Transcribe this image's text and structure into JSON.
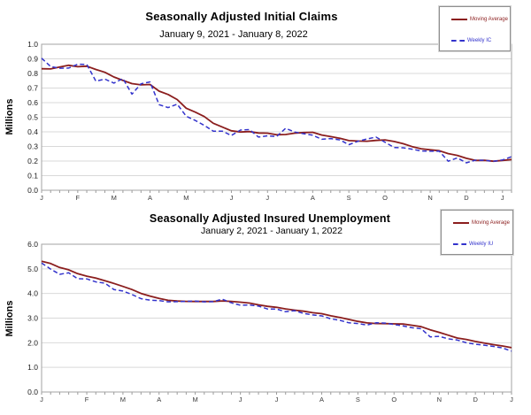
{
  "colors": {
    "grid": "#d9d9d9",
    "frame": "#a3a3a3",
    "tick": "#9a9a9a",
    "axis_text": "#3a3a3a",
    "ytick_text": "#1a1a1a",
    "title_text": "#000000"
  },
  "chart_data": [
    {
      "type": "line",
      "title": "Seasonally Adjusted Initial Claims",
      "subtitle": "January 9, 2021 - January 8, 2022",
      "ylabel": "Millions",
      "ylim": [
        0.0,
        1.0
      ],
      "ytick_labels": [
        "1.0",
        "0.9",
        "0.8",
        "0.7",
        "0.6",
        "0.5",
        "0.4",
        "0.3",
        "0.2",
        "0.1",
        "0.0"
      ],
      "grid": "horizontal",
      "legend_position": "top-right",
      "x_month_labels": [
        "J",
        "F",
        "M",
        "A",
        "M",
        "J",
        "J",
        "A",
        "S",
        "O",
        "N",
        "D",
        "J"
      ],
      "x_month_week_index": [
        0,
        4,
        8,
        12,
        16,
        21,
        25,
        30,
        34,
        38,
        43,
        47,
        51
      ],
      "series": [
        {
          "name": "Moving Average",
          "style": "solid",
          "color": "#8b1e1e",
          "values": [
            0.832,
            0.831,
            0.844,
            0.856,
            0.846,
            0.85,
            0.827,
            0.808,
            0.776,
            0.752,
            0.73,
            0.722,
            0.724,
            0.679,
            0.656,
            0.621,
            0.562,
            0.535,
            0.505,
            0.459,
            0.433,
            0.407,
            0.399,
            0.402,
            0.392,
            0.391,
            0.38,
            0.382,
            0.391,
            0.395,
            0.397,
            0.378,
            0.367,
            0.356,
            0.34,
            0.337,
            0.336,
            0.341,
            0.345,
            0.334,
            0.319,
            0.299,
            0.284,
            0.277,
            0.271,
            0.251,
            0.239,
            0.219,
            0.204,
            0.205,
            0.199,
            0.204,
            0.21
          ]
        },
        {
          "name": "Weekly IC",
          "style": "dashed",
          "color": "#3333cc",
          "values": [
            0.904,
            0.847,
            0.836,
            0.837,
            0.863,
            0.862,
            0.747,
            0.761,
            0.734,
            0.765,
            0.658,
            0.729,
            0.742,
            0.586,
            0.566,
            0.59,
            0.507,
            0.478,
            0.444,
            0.405,
            0.405,
            0.375,
            0.412,
            0.416,
            0.364,
            0.373,
            0.368,
            0.424,
            0.399,
            0.387,
            0.377,
            0.349,
            0.354,
            0.345,
            0.312,
            0.335,
            0.351,
            0.364,
            0.329,
            0.293,
            0.291,
            0.281,
            0.269,
            0.267,
            0.268,
            0.199,
            0.222,
            0.188,
            0.206,
            0.205,
            0.198,
            0.207,
            0.23
          ]
        }
      ]
    },
    {
      "type": "line",
      "title": "Seasonally Adjusted Insured Unemployment",
      "subtitle": "January 2, 2021 - January 1, 2022",
      "ylabel": "Millions",
      "ylim": [
        0.0,
        6.0
      ],
      "ytick_labels": [
        "6.0",
        "5.0",
        "4.0",
        "3.0",
        "2.0",
        "1.0",
        "0.0"
      ],
      "grid": "horizontal",
      "legend_position": "top-right",
      "x_month_labels": [
        "J",
        "F",
        "M",
        "A",
        "M",
        "J",
        "J",
        "A",
        "S",
        "O",
        "N",
        "D",
        "J"
      ],
      "x_month_week_index": [
        0,
        5,
        9,
        13,
        17,
        22,
        26,
        31,
        35,
        39,
        44,
        48,
        52
      ],
      "series": [
        {
          "name": "Moving Average",
          "style": "solid",
          "color": "#8b1e1e",
          "values": [
            5.308,
            5.218,
            5.055,
            4.963,
            4.803,
            4.703,
            4.625,
            4.52,
            4.41,
            4.288,
            4.16,
            4.003,
            3.895,
            3.798,
            3.723,
            3.693,
            3.68,
            3.675,
            3.675,
            3.675,
            3.698,
            3.68,
            3.645,
            3.61,
            3.54,
            3.478,
            3.44,
            3.373,
            3.325,
            3.28,
            3.22,
            3.178,
            3.095,
            3.025,
            2.945,
            2.868,
            2.805,
            2.78,
            2.778,
            2.768,
            2.758,
            2.708,
            2.65,
            2.525,
            2.42,
            2.308,
            2.193,
            2.133,
            2.053,
            1.988,
            1.923,
            1.87,
            1.8
          ]
        },
        {
          "name": "Weekly IU",
          "style": "dashed",
          "color": "#3333cc",
          "values": [
            5.24,
            4.99,
            4.78,
            4.84,
            4.6,
            4.59,
            4.47,
            4.42,
            4.16,
            4.1,
            3.96,
            3.79,
            3.73,
            3.71,
            3.66,
            3.67,
            3.68,
            3.69,
            3.66,
            3.67,
            3.77,
            3.62,
            3.52,
            3.53,
            3.49,
            3.37,
            3.37,
            3.26,
            3.3,
            3.19,
            3.13,
            3.09,
            2.97,
            2.91,
            2.81,
            2.78,
            2.72,
            2.81,
            2.8,
            2.74,
            2.68,
            2.61,
            2.57,
            2.24,
            2.26,
            2.16,
            2.11,
            2.0,
            1.94,
            1.9,
            1.85,
            1.79,
            1.66
          ]
        }
      ]
    }
  ]
}
